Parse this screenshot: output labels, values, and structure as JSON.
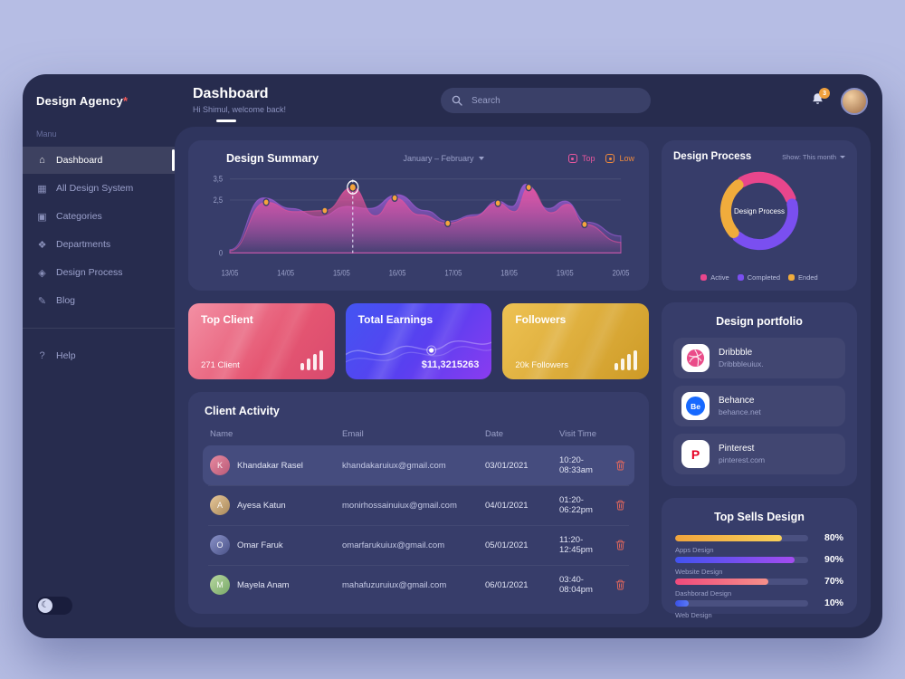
{
  "sidebar": {
    "logo": "Design Agency",
    "logo_accent": "*",
    "section_label": "Manu",
    "items": [
      {
        "label": "Dashboard",
        "icon": "dashboard-icon",
        "glyph": "⌂",
        "active": true
      },
      {
        "label": "All Design System",
        "icon": "design-system-icon",
        "glyph": "▦",
        "active": false
      },
      {
        "label": "Categories",
        "icon": "categories-icon",
        "glyph": "▣",
        "active": false
      },
      {
        "label": "Departments",
        "icon": "departments-icon",
        "glyph": "❖",
        "active": false
      },
      {
        "label": "Design Process",
        "icon": "design-process-icon",
        "glyph": "◈",
        "active": false
      },
      {
        "label": "Blog",
        "icon": "blog-icon",
        "glyph": "✎",
        "active": false
      }
    ],
    "help": {
      "label": "Help",
      "icon": "help-icon",
      "glyph": "?"
    },
    "theme_toggle_glyph": "☾"
  },
  "header": {
    "title": "Dashboard",
    "subtitle": "Hi Shimul, welcome back!",
    "search_placeholder": "Search",
    "notifications": "3"
  },
  "design_summary": {
    "title": "Design Summary",
    "period": "January – February",
    "legend": [
      {
        "label": "Top",
        "color": "#e8579e"
      },
      {
        "label": "Low",
        "color": "#f08a3c"
      }
    ]
  },
  "stat_cards": [
    {
      "title": "Top Client",
      "value": "271 Client",
      "decor": "bars",
      "style": "pink"
    },
    {
      "title": "Total Earnings",
      "value": "$11,3215263",
      "decor": "wave",
      "style": "blue"
    },
    {
      "title": "Followers",
      "value": "20k Followers",
      "decor": "bars",
      "style": "gold"
    }
  ],
  "client_activity": {
    "title": "Client Activity",
    "columns": [
      "Name",
      "Email",
      "Date",
      "Visit Time"
    ],
    "rows": [
      {
        "name": "Khandakar Rasel",
        "email": "khandakaruiux@gmail.com",
        "date": "03/01/2021",
        "time": "10:20-08:33am",
        "highlight": true
      },
      {
        "name": "Ayesa Katun",
        "email": "monirhossainuiux@gmail.com",
        "date": "04/01/2021",
        "time": "01:20-06:22pm",
        "highlight": false
      },
      {
        "name": "Omar Faruk",
        "email": "omarfarukuiux@gmail.com",
        "date": "05/01/2021",
        "time": "11:20-12:45pm",
        "highlight": false
      },
      {
        "name": "Mayela Anam",
        "email": "mahafuzuruiux@gmail.com",
        "date": "06/01/2021",
        "time": "03:40-08:04pm",
        "highlight": false
      }
    ]
  },
  "design_process": {
    "title": "Design Process",
    "filter": "Show: This month",
    "center_label": "Design Process"
  },
  "portfolio": {
    "title": "Design portfolio",
    "items": [
      {
        "name": "Dribbble",
        "domain": "Dribbbleuiux.",
        "icon": "dribbble-icon",
        "glyph": "",
        "color": "#ea4c89"
      },
      {
        "name": "Behance",
        "domain": "behance.net",
        "icon": "behance-icon",
        "glyph": "Be",
        "color": "#1769ff"
      },
      {
        "name": "Pinterest",
        "domain": "pinterest.com",
        "icon": "pinterest-icon",
        "glyph": "P",
        "color": "#e60023"
      }
    ]
  },
  "top_sells": {
    "title": "Top Sells Design"
  },
  "chart_data": [
    {
      "type": "area",
      "title": "Design Summary",
      "x_labels": [
        "13/05",
        "14/05",
        "15/05",
        "16/05",
        "17/05",
        "18/05",
        "19/05",
        "20/05"
      ],
      "ylim": [
        0,
        3.5
      ],
      "yticks": [
        {
          "label": "3,5",
          "value": 3.5
        },
        {
          "label": "2,5",
          "value": 2.5
        },
        {
          "label": "0",
          "value": 0
        }
      ],
      "series": [
        {
          "name": "Top",
          "color": "#a95fe0",
          "points": [
            [
              0,
              0.15
            ],
            [
              0.6,
              2.6
            ],
            [
              1.1,
              2.1
            ],
            [
              1.6,
              1.7
            ],
            [
              2.1,
              2.2
            ],
            [
              2.5,
              2.1
            ],
            [
              3,
              2.75
            ],
            [
              3.5,
              2
            ],
            [
              3.9,
              1.5
            ],
            [
              4.4,
              1.8
            ],
            [
              4.8,
              2.45
            ],
            [
              5.05,
              2.2
            ],
            [
              5.3,
              3.25
            ],
            [
              5.7,
              2.1
            ],
            [
              6,
              2.45
            ],
            [
              6.4,
              1.45
            ],
            [
              7,
              0.8
            ]
          ]
        },
        {
          "name": "Low",
          "color": "#e8549c",
          "points": [
            [
              0,
              0.1
            ],
            [
              0.65,
              2.4
            ],
            [
              1.15,
              1.95
            ],
            [
              1.7,
              2
            ],
            [
              2.2,
              3.1
            ],
            [
              2.6,
              1.75
            ],
            [
              2.95,
              2.6
            ],
            [
              3.4,
              1.8
            ],
            [
              3.9,
              1.4
            ],
            [
              4.35,
              1.7
            ],
            [
              4.8,
              2.35
            ],
            [
              5.1,
              1.95
            ],
            [
              5.35,
              3.1
            ],
            [
              5.75,
              1.9
            ],
            [
              6.05,
              2.3
            ],
            [
              6.35,
              1.35
            ],
            [
              7,
              0.5
            ]
          ]
        }
      ],
      "markers": [
        [
          0.65,
          2.4
        ],
        [
          1.7,
          2
        ],
        [
          2.2,
          3.1
        ],
        [
          2.95,
          2.6
        ],
        [
          3.9,
          1.4
        ],
        [
          4.8,
          2.35
        ],
        [
          5.35,
          3.1
        ],
        [
          6.35,
          1.35
        ]
      ],
      "marker_color": "#f5a43c",
      "highlight_index": 2,
      "legend": [
        "Top",
        "Low"
      ],
      "legend_position": "top-right"
    },
    {
      "type": "donut",
      "title": "Design Process",
      "center_label": "Design Process",
      "segments": [
        {
          "label": "Active",
          "value": 30,
          "color": "#e8468c"
        },
        {
          "label": "Completed",
          "value": 42,
          "color": "#7a4ff0"
        },
        {
          "label": "Ended",
          "value": 28,
          "color": "#f0ac3c"
        }
      ]
    },
    {
      "type": "bar",
      "title": "Top Sells Design",
      "categories": [
        "Apps Design",
        "Website Design",
        "Dashborad Design",
        "Web Design"
      ],
      "values": [
        80,
        90,
        70,
        10
      ],
      "value_labels": [
        "80%",
        "90%",
        "70%",
        "10%"
      ],
      "bar_colors": [
        [
          "#f0a43c",
          "#f8d05a"
        ],
        [
          "#4152f0",
          "#a44cf0"
        ],
        [
          "#f04a7c",
          "#f5908a"
        ],
        [
          "#3a52e8",
          "#5a78f5"
        ]
      ],
      "xlim": [
        0,
        100
      ]
    }
  ]
}
